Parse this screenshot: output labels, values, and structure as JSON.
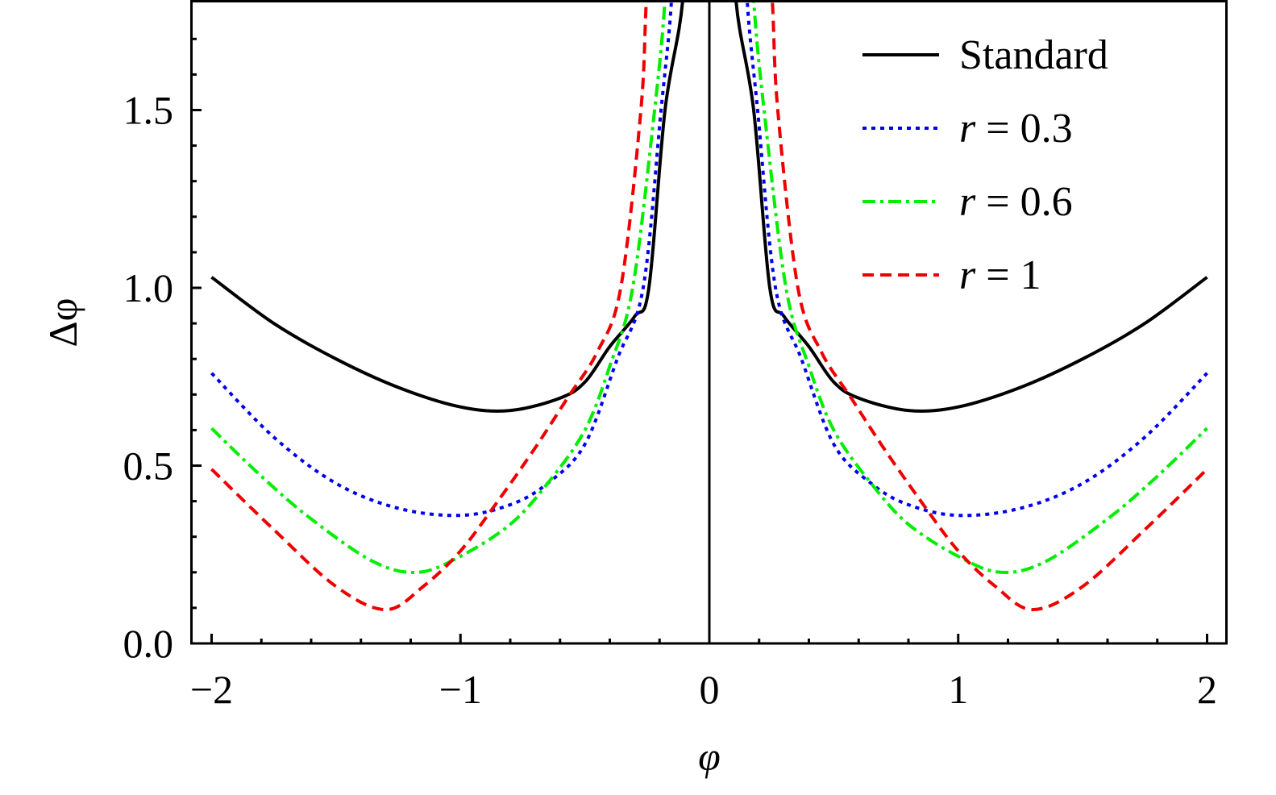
{
  "chart_data": {
    "type": "line",
    "title": "",
    "xlabel": "φ",
    "ylabel": "Δφ",
    "xlim": [
      -2.083,
      2.08
    ],
    "ylim": [
      0,
      1.81
    ],
    "x_ticks": [
      "−2",
      "−1",
      "0",
      "1",
      "2"
    ],
    "x_tick_values": [
      -2,
      -1,
      0,
      1,
      2
    ],
    "y_ticks": [
      "0.0",
      "0.5",
      "1.0",
      "1.5"
    ],
    "y_tick_values": [
      0,
      0.5,
      1.0,
      1.5
    ],
    "grid": false,
    "legend_position": "top-right",
    "symmetric_in_x": true,
    "series": [
      {
        "name": "Standard",
        "legend_prefix": "",
        "legend_value": "Standard",
        "color": "#000000",
        "dash": "solid",
        "points": [
          [
            0.09,
            2.2
          ],
          [
            0.107,
            1.81
          ],
          [
            0.178,
            1.5
          ],
          [
            0.243,
            1.0
          ],
          [
            0.3,
            0.92
          ],
          [
            0.4,
            0.835
          ],
          [
            0.5,
            0.735
          ],
          [
            0.6,
            0.69
          ],
          [
            0.8,
            0.655
          ],
          [
            1.0,
            0.665
          ],
          [
            1.25,
            0.72
          ],
          [
            1.5,
            0.8
          ],
          [
            1.75,
            0.9
          ],
          [
            2.0,
            1.03
          ]
        ]
      },
      {
        "name": "r = 0.3",
        "legend_prefix": "r",
        "legend_value": " = 0.3",
        "color": "#0000ee",
        "dash": "dotted",
        "points": [
          [
            0.13,
            2.2
          ],
          [
            0.152,
            1.81
          ],
          [
            0.194,
            1.5
          ],
          [
            0.266,
            1.0
          ],
          [
            0.37,
            0.8
          ],
          [
            0.5,
            0.56
          ],
          [
            0.65,
            0.45
          ],
          [
            0.8,
            0.39
          ],
          [
            1.0,
            0.36
          ],
          [
            1.25,
            0.38
          ],
          [
            1.5,
            0.45
          ],
          [
            1.75,
            0.58
          ],
          [
            2.0,
            0.76
          ]
        ]
      },
      {
        "name": "r = 0.6",
        "legend_prefix": "r",
        "legend_value": " = 0.6",
        "color": "#00ee00",
        "dash": "dashdot",
        "points": [
          [
            0.15,
            2.2
          ],
          [
            0.178,
            1.81
          ],
          [
            0.22,
            1.5
          ],
          [
            0.308,
            1.0
          ],
          [
            0.4,
            0.78
          ],
          [
            0.5,
            0.6
          ],
          [
            0.65,
            0.45
          ],
          [
            0.8,
            0.335
          ],
          [
            1.0,
            0.245
          ],
          [
            1.17,
            0.2
          ],
          [
            1.35,
            0.23
          ],
          [
            1.6,
            0.35
          ],
          [
            1.8,
            0.47
          ],
          [
            2.0,
            0.605
          ]
        ]
      },
      {
        "name": "r = 1",
        "legend_prefix": "r",
        "legend_value": " = 1",
        "color": "#ee0000",
        "dash": "dashed",
        "points": [
          [
            0.22,
            2.2
          ],
          [
            0.253,
            1.81
          ],
          [
            0.275,
            1.5
          ],
          [
            0.356,
            1.0
          ],
          [
            0.45,
            0.82
          ],
          [
            0.57,
            0.69
          ],
          [
            0.7,
            0.55
          ],
          [
            0.85,
            0.4
          ],
          [
            1.0,
            0.26
          ],
          [
            1.15,
            0.16
          ],
          [
            1.3,
            0.095
          ],
          [
            1.5,
            0.16
          ],
          [
            1.75,
            0.32
          ],
          [
            2.0,
            0.49
          ]
        ]
      }
    ]
  }
}
